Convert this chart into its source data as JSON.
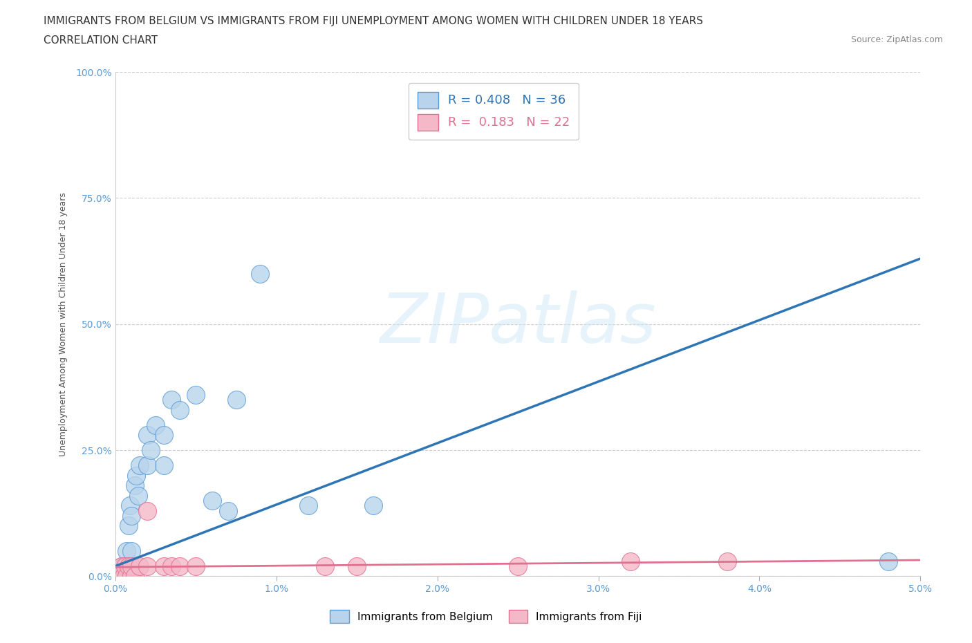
{
  "title_line1": "IMMIGRANTS FROM BELGIUM VS IMMIGRANTS FROM FIJI UNEMPLOYMENT AMONG WOMEN WITH CHILDREN UNDER 18 YEARS",
  "title_line2": "CORRELATION CHART",
  "source": "Source: ZipAtlas.com",
  "ylabel": "Unemployment Among Women with Children Under 18 years",
  "xlim": [
    0,
    0.05
  ],
  "ylim": [
    0,
    1.0
  ],
  "xticks": [
    0.0,
    0.01,
    0.02,
    0.03,
    0.04,
    0.05
  ],
  "yticks": [
    0.0,
    0.25,
    0.5,
    0.75,
    1.0
  ],
  "ytick_labels": [
    "0.0%",
    "25.0%",
    "50.0%",
    "75.0%",
    "100.0%"
  ],
  "xtick_labels": [
    "0.0%",
    "1.0%",
    "2.0%",
    "3.0%",
    "4.0%",
    "5.0%"
  ],
  "belgium_R": 0.408,
  "belgium_N": 36,
  "fiji_R": 0.183,
  "fiji_N": 22,
  "belgium_color": "#b8d4ec",
  "belgium_edge_color": "#5b9bd5",
  "belgium_line_color": "#2e75b6",
  "fiji_color": "#f4b8c8",
  "fiji_edge_color": "#e07090",
  "fiji_line_color": "#e07090",
  "belgium_x": [
    0.0002,
    0.0003,
    0.0004,
    0.0004,
    0.0005,
    0.0005,
    0.0006,
    0.0006,
    0.0007,
    0.0007,
    0.0008,
    0.0008,
    0.0009,
    0.001,
    0.001,
    0.001,
    0.0012,
    0.0013,
    0.0014,
    0.0015,
    0.002,
    0.002,
    0.0022,
    0.0025,
    0.003,
    0.003,
    0.0035,
    0.004,
    0.005,
    0.006,
    0.007,
    0.0075,
    0.009,
    0.012,
    0.016,
    0.048
  ],
  "belgium_y": [
    0.0,
    0.0,
    0.0,
    0.02,
    0.0,
    0.02,
    0.0,
    0.02,
    0.0,
    0.05,
    0.0,
    0.1,
    0.14,
    0.0,
    0.05,
    0.12,
    0.18,
    0.2,
    0.16,
    0.22,
    0.22,
    0.28,
    0.25,
    0.3,
    0.22,
    0.28,
    0.35,
    0.33,
    0.36,
    0.15,
    0.13,
    0.35,
    0.6,
    0.14,
    0.14,
    0.03
  ],
  "fiji_x": [
    0.0002,
    0.0003,
    0.0004,
    0.0005,
    0.0006,
    0.0007,
    0.0008,
    0.001,
    0.001,
    0.0012,
    0.0015,
    0.002,
    0.002,
    0.003,
    0.0035,
    0.004,
    0.005,
    0.013,
    0.015,
    0.025,
    0.032,
    0.038
  ],
  "fiji_y": [
    0.0,
    0.0,
    0.02,
    0.0,
    0.02,
    0.0,
    0.02,
    0.0,
    0.02,
    0.0,
    0.02,
    0.02,
    0.13,
    0.02,
    0.02,
    0.02,
    0.02,
    0.02,
    0.02,
    0.02,
    0.03,
    0.03
  ],
  "belgium_trend_x0": 0.0,
  "belgium_trend_y0": 0.02,
  "belgium_trend_x1": 0.05,
  "belgium_trend_y1": 0.63,
  "fiji_trend_x0": 0.0,
  "fiji_trend_y0": 0.018,
  "fiji_trend_x1": 0.05,
  "fiji_trend_y1": 0.032,
  "watermark": "ZIPatlas",
  "background_color": "#ffffff",
  "grid_color": "#cccccc",
  "title_fontsize": 11,
  "axis_label_fontsize": 9,
  "tick_fontsize": 10,
  "legend_fontsize": 12
}
